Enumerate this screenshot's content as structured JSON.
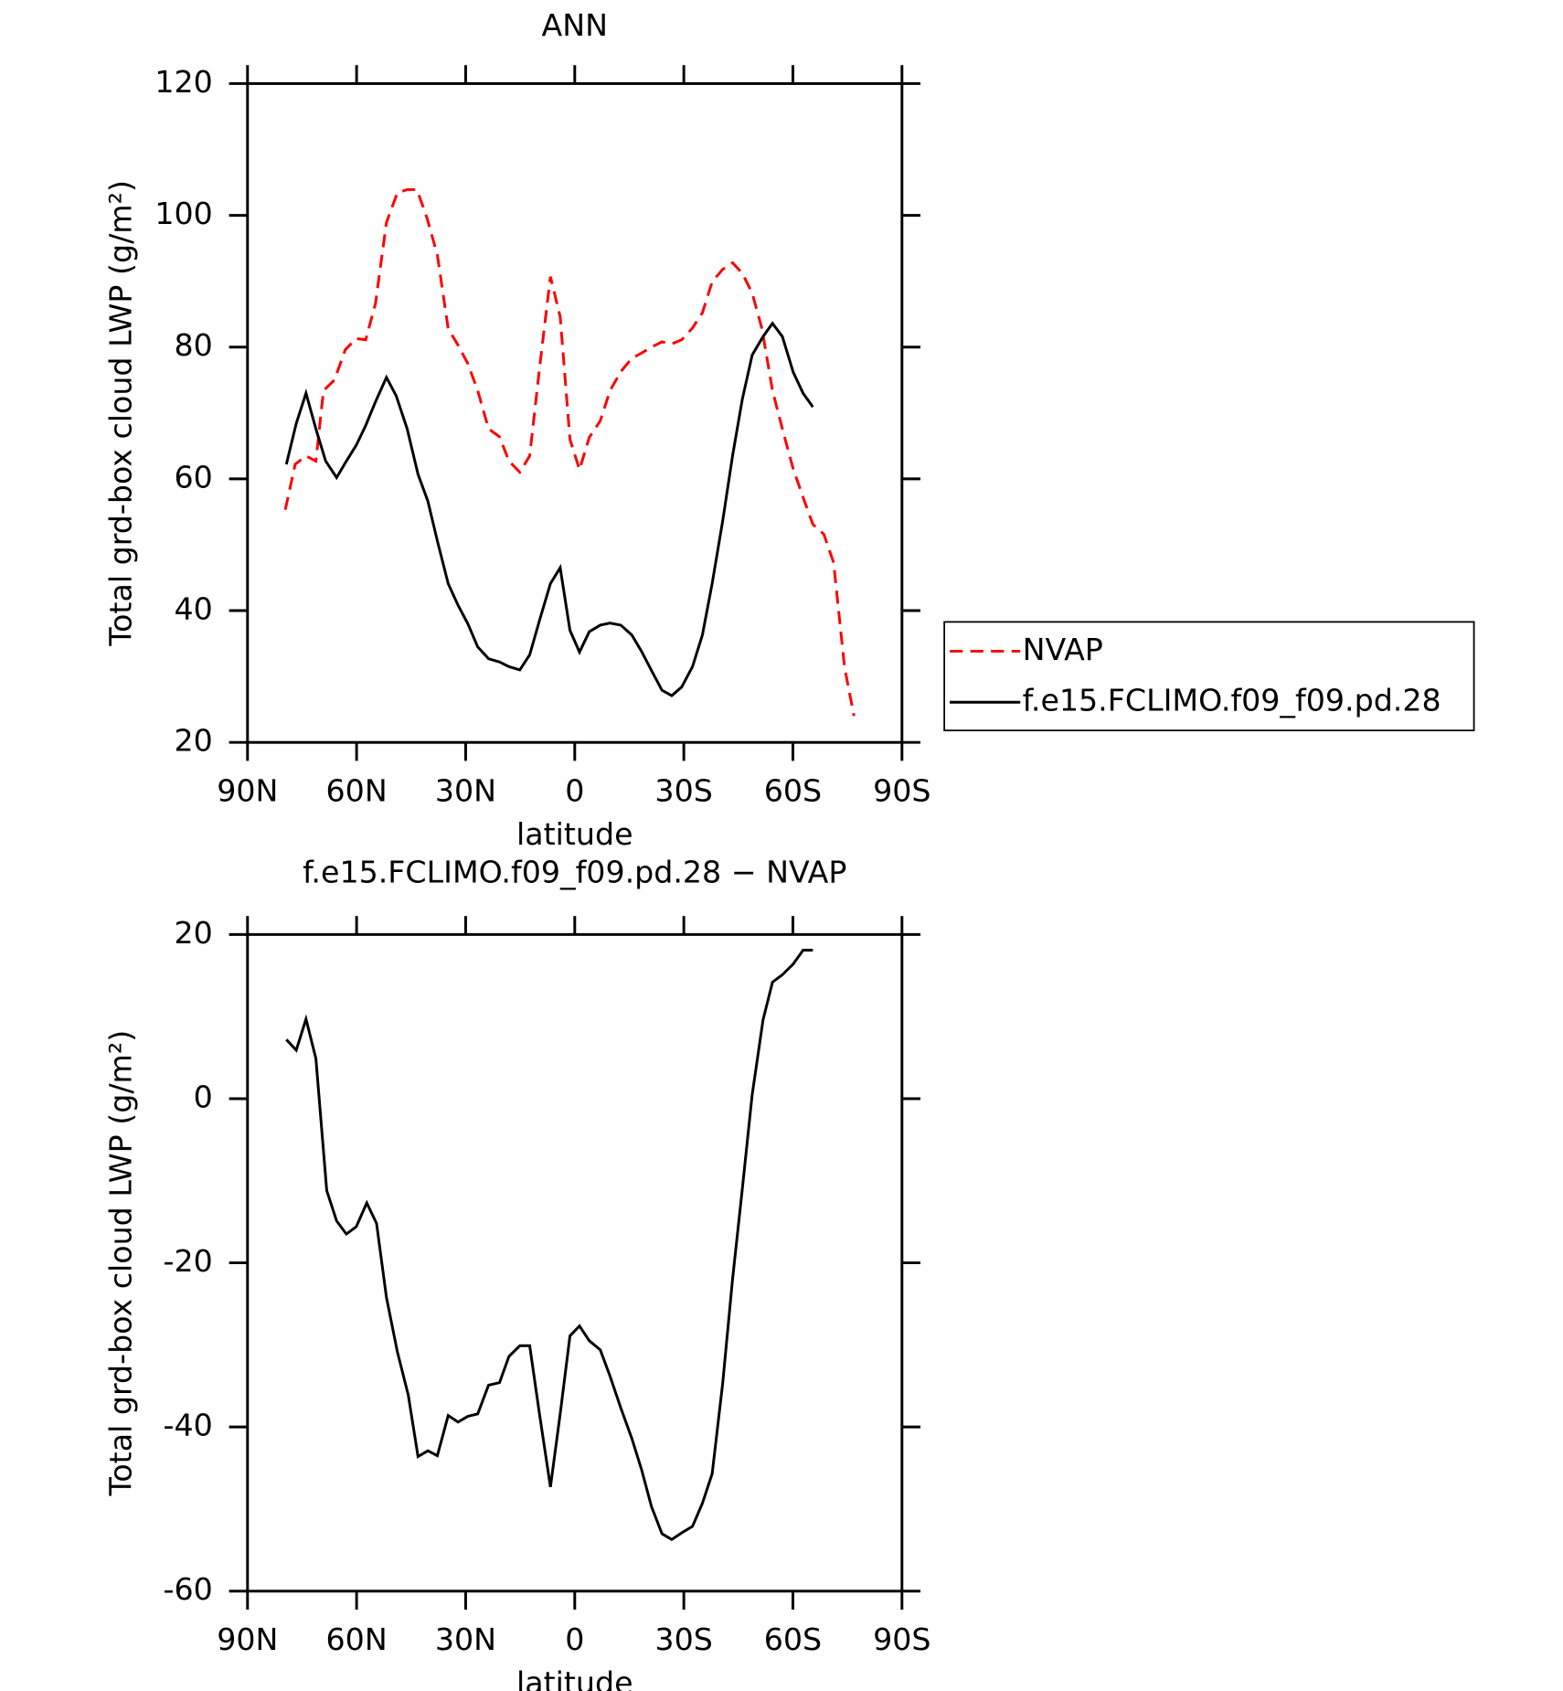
{
  "chart_data": [
    {
      "type": "line",
      "title": "ANN",
      "xlabel": "latitude",
      "ylabel": "Total grd-box cloud LWP (g/m²)",
      "xlim": [
        90,
        -90
      ],
      "xticks": [
        {
          "value": 90,
          "label": "90N"
        },
        {
          "value": 60,
          "label": "60N"
        },
        {
          "value": 30,
          "label": "30N"
        },
        0,
        {
          "value": -30,
          "label": "30S"
        },
        {
          "value": -60,
          "label": "60S"
        },
        {
          "value": -90,
          "label": "90S"
        }
      ],
      "ylim": [
        20,
        120
      ],
      "yticks": [
        20,
        40,
        60,
        80,
        100,
        120
      ],
      "legend": "right",
      "series": [
        {
          "name": "NVAP",
          "color": "#ff0000",
          "dash": true,
          "x": [
            79.6,
            76.9,
            73.9,
            71.2,
            69.1,
            66.1,
            63.1,
            60.1,
            57.5,
            54.8,
            51.8,
            48.8,
            46.1,
            43.4,
            40.7,
            37.8,
            34.8,
            32.1,
            29.4,
            26.7,
            23.7,
            20.7,
            18.1,
            15.1,
            12.4,
            9.7,
            6.7,
            4.0,
            1.3,
            -1.3,
            -4.0,
            -7.0,
            -9.7,
            -12.7,
            -15.7,
            -18.4,
            -21.1,
            -24.0,
            -26.7,
            -29.4,
            -32.4,
            -35.1,
            -37.8,
            -40.7,
            -43.4,
            -46.1,
            -48.8,
            -51.5,
            -54.4,
            -57.1,
            -60.1,
            -62.8,
            -65.5,
            -68.5,
            -71.2,
            -74.2,
            -76.8
          ],
          "values": [
            55.3,
            62.2,
            63.5,
            62.7,
            73.4,
            75,
            79.6,
            81.3,
            81.1,
            86.6,
            98.9,
            103.4,
            103.9,
            103.9,
            99.7,
            94,
            82.8,
            80.3,
            77.5,
            73.4,
            67.6,
            66.4,
            62.7,
            61,
            63.5,
            76.7,
            90.7,
            84.6,
            66,
            61.4,
            66.3,
            68.8,
            73.4,
            76.3,
            78.3,
            79.1,
            80,
            80.8,
            80.5,
            81.1,
            82.9,
            85.2,
            89.9,
            91.8,
            92.8,
            91.2,
            88.2,
            82.8,
            73.4,
            67.6,
            61.5,
            57.2,
            53.1,
            51.6,
            47.3,
            31.4,
            24
          ]
        },
        {
          "name": "f.e15.FCLIMO.f09_f09.pd.28",
          "color": "#000000",
          "dash": false,
          "x": [
            79.3,
            76.6,
            73.9,
            71.2,
            68.5,
            65.5,
            62.8,
            60.1,
            57.5,
            54.8,
            51.8,
            49.1,
            46.1,
            43.1,
            40.4,
            37.8,
            34.8,
            32.1,
            29.4,
            26.7,
            23.7,
            20.7,
            18.1,
            15.1,
            12.4,
            9.7,
            6.7,
            4.0,
            1.3,
            -1.3,
            -4.0,
            -7.0,
            -9.7,
            -12.7,
            -15.7,
            -18.4,
            -21.1,
            -24.0,
            -26.7,
            -29.4,
            -32.4,
            -35.1,
            -37.8,
            -40.7,
            -43.4,
            -46.1,
            -48.8,
            -51.8,
            -54.4,
            -57.1,
            -60.1,
            -62.8,
            -65.5
          ],
          "values": [
            62.2,
            68.4,
            73,
            67.6,
            62.7,
            60.2,
            62.7,
            65.1,
            68.1,
            71.7,
            75.4,
            72.6,
            67.6,
            60.7,
            56.6,
            50.6,
            44.1,
            40.8,
            38,
            34.5,
            32.7,
            32.2,
            31.5,
            31,
            33.3,
            38.5,
            44.1,
            46.5,
            37,
            33.7,
            36.8,
            37.8,
            38.1,
            37.8,
            36.3,
            33.8,
            30.9,
            27.9,
            27.1,
            28.4,
            31.5,
            36.3,
            44.1,
            53.6,
            63.5,
            72.1,
            78.8,
            81.6,
            83.6,
            81.6,
            76.2,
            73,
            70.9
          ]
        }
      ]
    },
    {
      "type": "line",
      "title": "f.e15.FCLIMO.f09_f09.pd.28 − NVAP",
      "xlabel": "latitude",
      "ylabel": "Total grd-box cloud LWP (g/m²)",
      "xlim": [
        90,
        -90
      ],
      "xticks": [
        {
          "value": 90,
          "label": "90N"
        },
        {
          "value": 60,
          "label": "60N"
        },
        {
          "value": 30,
          "label": "30N"
        },
        0,
        {
          "value": -30,
          "label": "30S"
        },
        {
          "value": -60,
          "label": "60S"
        },
        {
          "value": -90,
          "label": "90S"
        }
      ],
      "ylim": [
        -60,
        20
      ],
      "yticks": [
        -60,
        -40,
        -20,
        0,
        20
      ],
      "series": [
        {
          "color": "#000000",
          "dash": false,
          "x": [
            79.3,
            76.6,
            73.9,
            71.2,
            68.2,
            65.5,
            62.8,
            60.1,
            57.2,
            54.5,
            51.8,
            48.8,
            45.8,
            43.1,
            40.4,
            37.8,
            34.8,
            32.1,
            29.4,
            26.7,
            23.7,
            20.7,
            18.1,
            15.1,
            12.4,
            9.7,
            6.7,
            4.0,
            1.3,
            -1.3,
            -4.0,
            -7.0,
            -9.7,
            -12.7,
            -15.7,
            -18.4,
            -21.1,
            -24.0,
            -26.7,
            -29.4,
            -32.4,
            -35.1,
            -37.8,
            -40.7,
            -43.4,
            -46.1,
            -48.8,
            -51.8,
            -54.4,
            -57.1,
            -60.1,
            -62.8,
            -65.5
          ],
          "values": [
            7.2,
            5.9,
            9.7,
            4.9,
            -11.2,
            -14.9,
            -16.5,
            -15.6,
            -12.7,
            -15.2,
            -24.2,
            -30.8,
            -36.1,
            -43.6,
            -42.9,
            -43.5,
            -38.6,
            -39.4,
            -38.7,
            -38.4,
            -34.9,
            -34.6,
            -31.4,
            -30.1,
            -30.1,
            -38.4,
            -47.3,
            -38.4,
            -28.9,
            -27.7,
            -29.5,
            -30.6,
            -33.8,
            -37.7,
            -41.4,
            -45.2,
            -49.7,
            -53,
            -53.7,
            -52.9,
            -52.1,
            -49.3,
            -45.7,
            -34.7,
            -22.0,
            -11.0,
            0.5,
            9.6,
            14.2,
            15.1,
            16.4,
            18.1,
            18.1
          ]
        }
      ]
    }
  ]
}
